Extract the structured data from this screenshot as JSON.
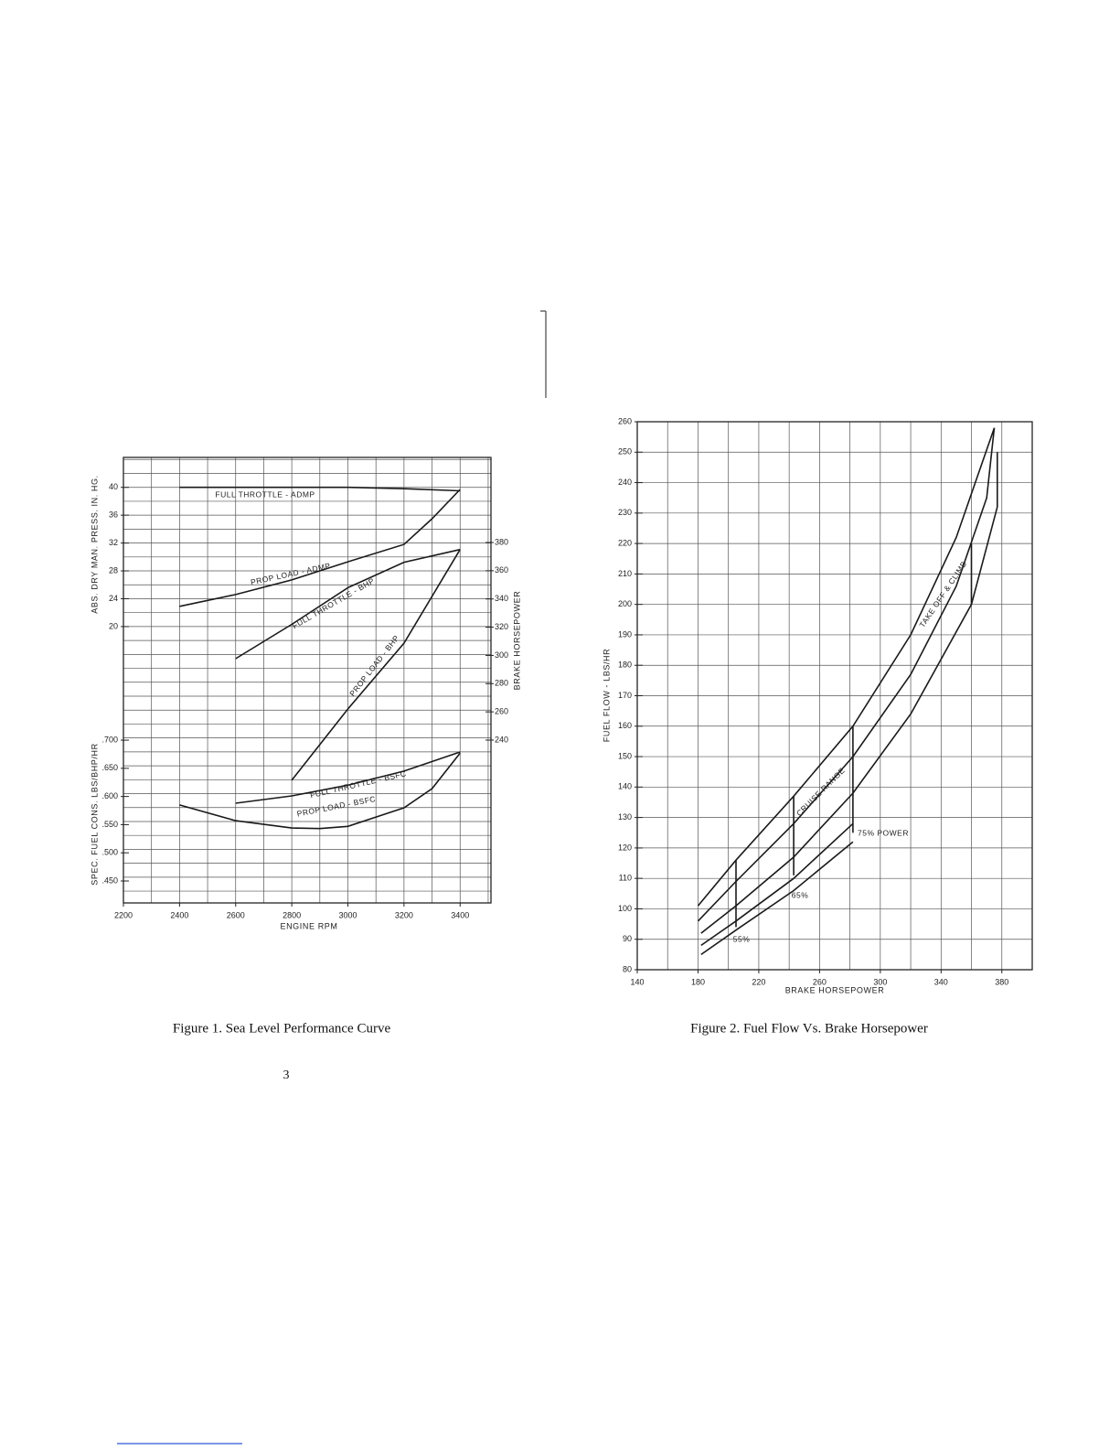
{
  "page_number": "3",
  "chart_data": [
    {
      "type": "line",
      "title": "Figure 1.  Sea Level Performance Curve",
      "x_label": "ENGINE RPM",
      "y_label": "ABS. DRY MAN. PRESS. IN. HG.",
      "y2_label": "BRAKE HORSEPOWER",
      "y3_label": "SPEC. FUEL CONS. LBS/BHP/HR",
      "xlim": [
        2200,
        3510
      ],
      "xticks": [
        2200,
        2400,
        2600,
        2800,
        3000,
        3200,
        3400
      ],
      "ylim": [
        -19.7,
        44.3
      ],
      "yticks": [
        20,
        24,
        28,
        32,
        36,
        40
      ],
      "y2lim": [
        124.6,
        440.3
      ],
      "y2ticks": [
        240,
        260,
        280,
        300,
        320,
        340,
        360,
        380
      ],
      "y3lim": [
        0.411,
        1.202
      ],
      "y3ticks": [
        {
          "value": 0.45,
          "label": ".450"
        },
        {
          "value": 0.5,
          "label": ".500"
        },
        {
          "value": 0.55,
          "label": ".550"
        },
        {
          "value": 0.6,
          "label": ".600"
        },
        {
          "value": 0.65,
          "label": ".650"
        },
        {
          "value": 0.7,
          "label": ".700"
        }
      ],
      "grid": true,
      "series": [
        {
          "name": "FULL THROTTLE - ADMP",
          "color": "#1a1a1a",
          "axis": "y",
          "x": [
            2400,
            2600,
            2800,
            3000,
            3200,
            3400
          ],
          "values": [
            40,
            40,
            40,
            40,
            39.8,
            39.5
          ]
        },
        {
          "name": "PROP LOAD - ADMP",
          "color": "#1a1a1a",
          "axis": "y",
          "x": [
            2400,
            2600,
            2800,
            3000,
            3200,
            3300,
            3400
          ],
          "values": [
            22.9,
            24.6,
            26.7,
            29.3,
            31.8,
            35.5,
            39.7
          ]
        },
        {
          "name": "FULL THROTTLE - BHP",
          "color": "#1a1a1a",
          "axis": "y2",
          "x": [
            2600,
            2800,
            3000,
            3200,
            3400
          ],
          "values": [
            297.7,
            322,
            348,
            366,
            375
          ]
        },
        {
          "name": "PROP LOAD - BHP",
          "color": "#1a1a1a",
          "axis": "y2",
          "x": [
            2800,
            3000,
            3200,
            3400
          ],
          "values": [
            211.5,
            262,
            308.7,
            375
          ]
        },
        {
          "name": "FULL THROTTLE - BSFC",
          "color": "#1a1a1a",
          "axis": "y3",
          "x": [
            2600,
            2800,
            3000,
            3200,
            3400
          ],
          "values": [
            0.588,
            0.601,
            0.62,
            0.645,
            0.679
          ]
        },
        {
          "name": "PROP LOAD - BSFC",
          "color": "#1a1a1a",
          "axis": "y3",
          "x": [
            2400,
            2600,
            2800,
            2900,
            3000,
            3200,
            3300,
            3400
          ],
          "values": [
            0.585,
            0.557,
            0.544,
            0.543,
            0.547,
            0.58,
            0.614,
            0.677
          ]
        }
      ]
    },
    {
      "type": "line",
      "title": "Figure 2.  Fuel Flow Vs. Brake Horsepower",
      "x_label": "BRAKE HORSEPOWER",
      "y_label": "FUEL FLOW - LBS/HR",
      "xlim": [
        140,
        400
      ],
      "xticks": [
        140,
        180,
        220,
        260,
        300,
        340,
        380
      ],
      "ylim": [
        80,
        260
      ],
      "yticks": [
        80,
        90,
        100,
        110,
        120,
        130,
        140,
        150,
        160,
        170,
        180,
        190,
        200,
        210,
        220,
        230,
        240,
        250,
        260
      ],
      "grid": true,
      "annotations": [
        "TAKE OFF & CLIMB",
        "CRUISE RANGE",
        "75% POWER",
        "65%",
        "55%"
      ],
      "series": [
        {
          "color": "#1a1a1a",
          "x": [
            180,
            205,
            243,
            282,
            320,
            350,
            375
          ],
          "values": [
            101,
            116,
            137,
            160,
            190,
            222,
            258
          ]
        },
        {
          "color": "#1a1a1a",
          "x": [
            180,
            205,
            243,
            282,
            320,
            350,
            370,
            375
          ],
          "values": [
            96,
            109,
            128,
            150,
            177,
            206,
            235,
            258
          ]
        },
        {
          "color": "#1a1a1a",
          "x": [
            182,
            205,
            243,
            282,
            320,
            360,
            377,
            377
          ],
          "values": [
            92,
            101,
            117,
            138,
            164,
            200,
            232,
            250
          ]
        },
        {
          "color": "#1a1a1a",
          "x": [
            182,
            205,
            243,
            282
          ],
          "values": [
            88,
            96,
            110,
            128
          ]
        },
        {
          "color": "#1a1a1a",
          "x": [
            182,
            205,
            243,
            282
          ],
          "values": [
            85,
            93,
            106,
            122
          ]
        },
        {
          "color": "#1a1a1a",
          "x": [
            205,
            205
          ],
          "values": [
            116,
            94
          ]
        },
        {
          "color": "#1a1a1a",
          "x": [
            243,
            243
          ],
          "values": [
            137,
            111
          ]
        },
        {
          "color": "#1a1a1a",
          "x": [
            282,
            282
          ],
          "values": [
            160,
            125
          ]
        },
        {
          "color": "#1a1a1a",
          "x": [
            360,
            360
          ],
          "values": [
            220,
            200
          ]
        }
      ]
    }
  ]
}
